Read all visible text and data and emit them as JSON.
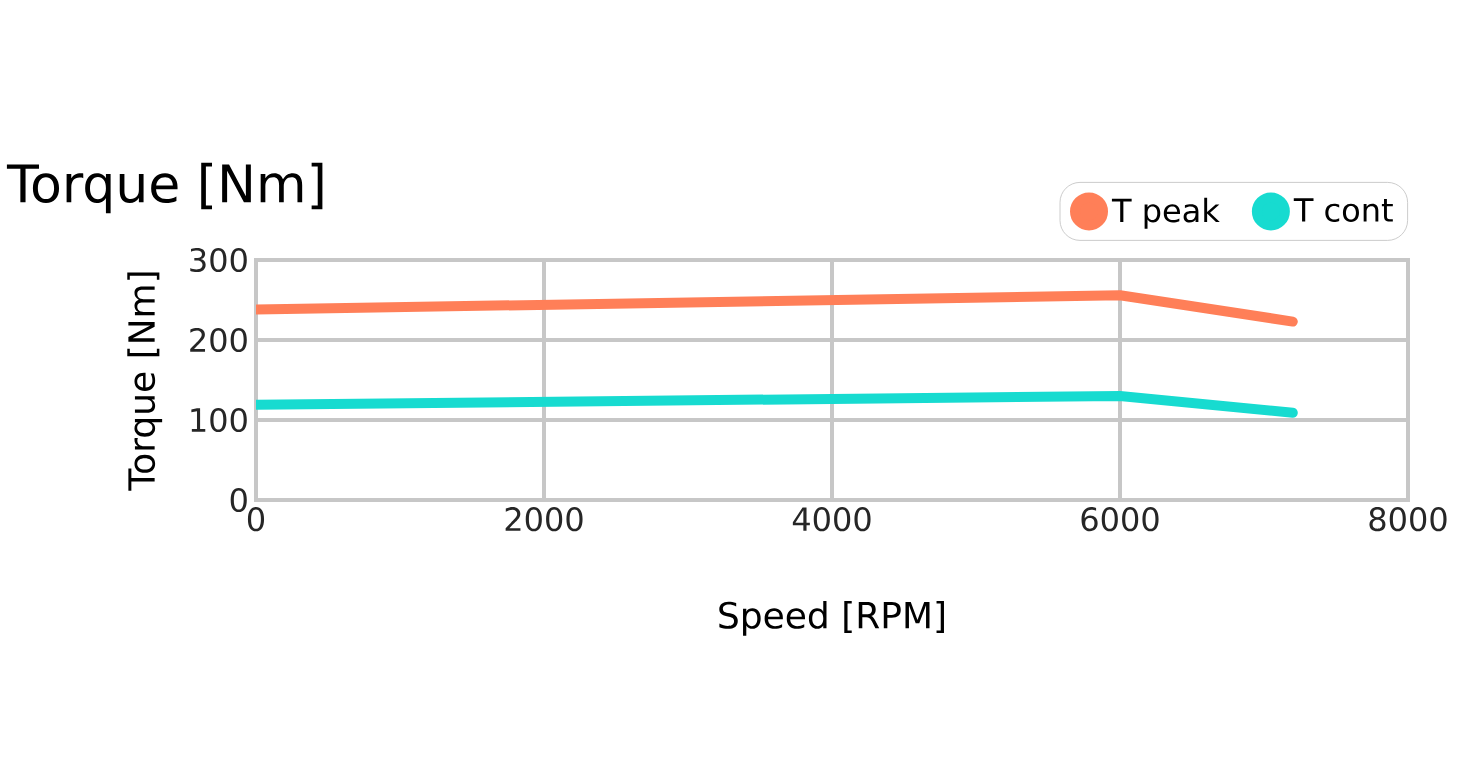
{
  "chart_data": {
    "type": "line",
    "title": "Torque [Nm]",
    "xlabel": "Speed [RPM]",
    "ylabel": "Torque [Nm]",
    "x": [
      0,
      6000,
      7200
    ],
    "series": [
      {
        "name": "T peak",
        "color": "#ff7f58",
        "values": [
          238,
          256,
          223
        ]
      },
      {
        "name": "T cont",
        "color": "#17dbd0",
        "values": [
          119,
          130,
          109
        ]
      }
    ],
    "xlim": [
      0,
      8000
    ],
    "xticks": [
      0,
      2000,
      4000,
      6000,
      8000
    ],
    "ylim": [
      0,
      300
    ],
    "yticks": [
      0,
      100,
      200,
      300
    ],
    "grid": true,
    "legend": "top right",
    "marker": "none",
    "line_style": "solid"
  }
}
